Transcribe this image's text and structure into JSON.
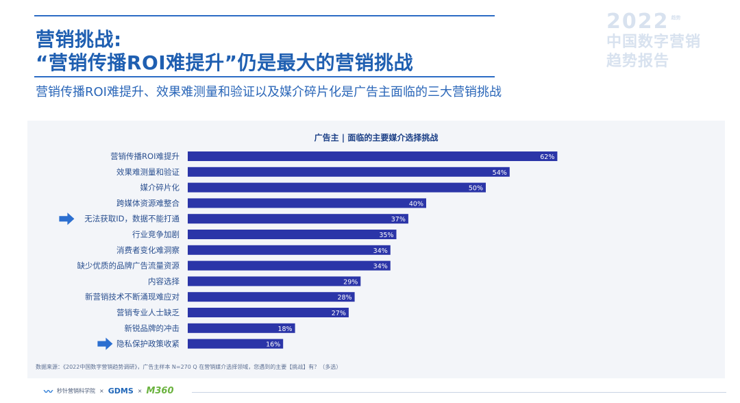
{
  "header": {
    "title_line1": "营销挑战:",
    "title_line2": "“营销传播ROI难提升”仍是最大的营销挑战",
    "subtitle": "营销传播ROI难提升、效果难测量和验证以及媒介碎片化是广告主面临的三大营销挑战"
  },
  "brand": {
    "year": "2022",
    "year_suffix": "趋势",
    "line1": "中国数字营销",
    "line2": "趋势报告"
  },
  "chart_data": {
    "type": "bar",
    "orientation": "horizontal",
    "title": "广告主 | 面临的主要媒介选择挑战",
    "categories": [
      "营销传播ROI难提升",
      "效果难测量和验证",
      "媒介碎片化",
      "跨媒体资源难整合",
      "无法获取ID，数据不能打通",
      "行业竞争加剧",
      "消费者变化难洞察",
      "缺少优质的品牌广告流量资源",
      "内容选择",
      "新营销技术不断涌现难应对",
      "营销专业人士缺乏",
      "新锐品牌的冲击",
      "隐私保护政策收紧"
    ],
    "values": [
      62,
      54,
      50,
      40,
      37,
      35,
      34,
      34,
      29,
      28,
      27,
      18,
      16
    ],
    "value_labels": [
      "62%",
      "54%",
      "50%",
      "40%",
      "37%",
      "35%",
      "34%",
      "34%",
      "29%",
      "28%",
      "27%",
      "18%",
      "16%"
    ],
    "highlighted": [
      "无法获取ID，数据不能打通",
      "隐私保护政策收紧"
    ],
    "xlim": [
      0,
      100
    ],
    "bar_color": "#2b35a8",
    "highlight_arrow_color": "#2c6fd0"
  },
  "footnote": "数据来源：《2022中国数字营销趋势调研》，广告主样本 N=270    Q 在营销媒介选择领域，您遇到的主要【挑战】有？（多选）",
  "footer": {
    "logo1": "秒针营销科学院",
    "sep1": "×",
    "logo2": "GDMS",
    "sep2": "×",
    "logo3": "M360"
  }
}
